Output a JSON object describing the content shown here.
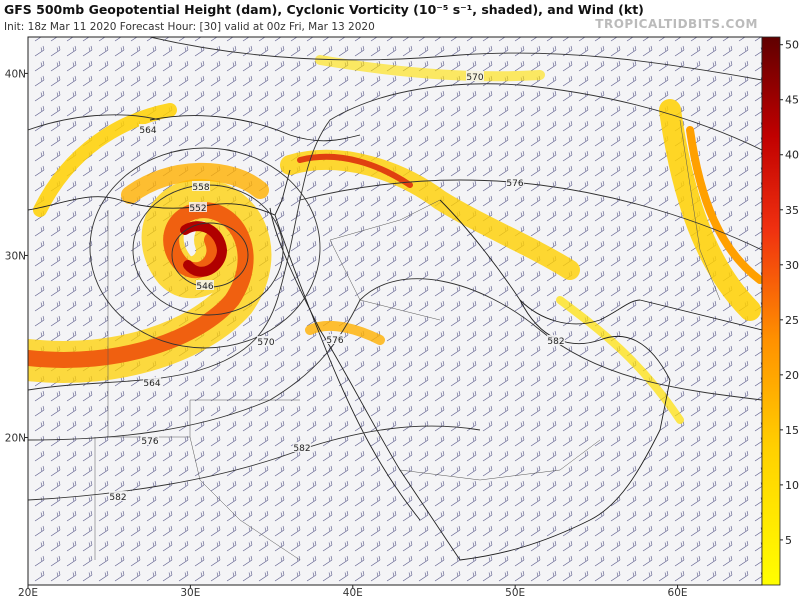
{
  "header": {
    "title": "GFS 500mb Geopotential Height (dam), Cyclonic Vorticity (10⁻⁵ s⁻¹, shaded), and Wind (kt)",
    "subtitle": "Init: 18z Mar 11 2020   Forecast Hour: [30]   valid at 00z Fri, Mar 13 2020",
    "site": "TROPICALTIDBITS.COM"
  },
  "map": {
    "lon_lim": [
      20,
      65.2
    ],
    "lat_lim": [
      11.9,
      42
    ],
    "lon_ticks": [
      {
        "value": 20,
        "label": "20E"
      },
      {
        "value": 30,
        "label": "30E"
      },
      {
        "value": 40,
        "label": "40E"
      },
      {
        "value": 50,
        "label": "50E"
      },
      {
        "value": 60,
        "label": "60E"
      }
    ],
    "lat_ticks": [
      {
        "value": 40,
        "label": "40N"
      },
      {
        "value": 30,
        "label": "30N"
      },
      {
        "value": 20,
        "label": "20N"
      }
    ],
    "contour_labels": [
      570,
      564,
      558,
      552,
      546,
      576,
      570,
      576,
      582,
      564,
      576,
      582,
      582
    ]
  },
  "colorbar": {
    "lim": [
      0.9,
      50.7
    ],
    "ticks": [
      5,
      10,
      15,
      20,
      25,
      30,
      35,
      40,
      45,
      50
    ]
  }
}
